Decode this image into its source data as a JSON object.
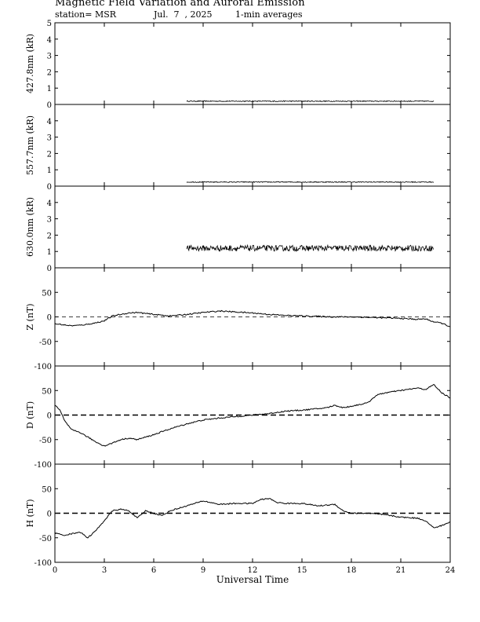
{
  "header": {
    "title": "Magnetic Field Variation and Auroral Emission",
    "station": "station= MSR",
    "date": "Jul.  7  , 2025",
    "averaging": "1-min averages"
  },
  "chart_data": [
    {
      "type": "line",
      "ylabel": "427.8nm (kR)",
      "ylim": [
        0,
        5
      ],
      "yticks": [
        "0",
        "1",
        "2",
        "3",
        "4",
        "5"
      ],
      "grid": false,
      "series": [
        {
          "x": [
            8.0,
            23.0
          ],
          "y": [
            0.2,
            0.2
          ],
          "noise": 0.03,
          "shape": "band"
        }
      ]
    },
    {
      "type": "line",
      "ylabel": "557.7nm (kR)",
      "ylim": [
        0,
        5
      ],
      "yticks": [
        "0",
        "1",
        "2",
        "3",
        "4",
        ""
      ],
      "grid": false,
      "series": [
        {
          "x": [
            8.0,
            23.0
          ],
          "y": [
            0.25,
            0.25
          ],
          "noise": 0.03,
          "shape": "band"
        }
      ]
    },
    {
      "type": "line",
      "ylabel": "630.0nm (kR)",
      "ylim": [
        0,
        5
      ],
      "yticks": [
        "0",
        "1",
        "2",
        "3",
        "4",
        ""
      ],
      "grid": false,
      "series": [
        {
          "x": [
            8.0,
            23.0
          ],
          "y": [
            1.2,
            1.2
          ],
          "noise": 0.18,
          "shape": "band"
        }
      ]
    },
    {
      "type": "line",
      "ylabel": "Z (nT)",
      "ylim": [
        -100,
        100
      ],
      "yticks": [
        "-100",
        "-50",
        "0",
        "50",
        ""
      ],
      "zero_line": "thin-dashed",
      "series": [
        {
          "x": [
            0,
            0.5,
            1,
            1.5,
            2,
            2.5,
            3,
            3.5,
            4,
            4.5,
            5,
            5.5,
            6,
            7,
            8,
            9,
            10,
            11,
            12,
            13,
            14,
            15,
            16,
            17,
            18,
            19,
            20,
            21,
            22,
            22.5,
            23,
            23.5,
            24
          ],
          "y": [
            -14,
            -16,
            -18,
            -17,
            -15,
            -12,
            -8,
            2,
            5,
            8,
            9,
            7,
            5,
            2,
            5,
            9,
            12,
            10,
            8,
            5,
            3,
            2,
            1,
            0,
            0,
            -1,
            -2,
            -3,
            -5,
            -4,
            -10,
            -13,
            -20
          ]
        }
      ]
    },
    {
      "type": "line",
      "ylabel": "D (nT)",
      "ylim": [
        -100,
        100
      ],
      "yticks": [
        "-100",
        "-50",
        "0",
        "50",
        ""
      ],
      "zero_line": "thick-dashed",
      "series": [
        {
          "x": [
            0,
            0.3,
            0.6,
            1,
            1.5,
            2,
            2.5,
            3,
            3.5,
            4,
            4.5,
            5,
            6,
            7,
            8,
            9,
            10,
            11,
            12,
            13,
            14,
            15,
            16,
            16.5,
            17,
            17.5,
            18,
            19,
            19.5,
            20,
            21,
            22,
            22.5,
            23,
            23.5,
            24
          ],
          "y": [
            20,
            10,
            -12,
            -30,
            -35,
            -45,
            -55,
            -63,
            -57,
            -50,
            -47,
            -50,
            -40,
            -28,
            -18,
            -10,
            -6,
            -3,
            0,
            3,
            8,
            10,
            13,
            15,
            20,
            15,
            18,
            25,
            40,
            45,
            50,
            55,
            52,
            62,
            45,
            35
          ]
        }
      ]
    },
    {
      "type": "line",
      "ylabel": "H (nT)",
      "ylim": [
        -100,
        100
      ],
      "yticks": [
        "-100",
        "-50",
        "0",
        "50",
        ""
      ],
      "xlabel": "Universal Time",
      "xlim": [
        0,
        24
      ],
      "xticks": [
        "0",
        "3",
        "6",
        "9",
        "12",
        "15",
        "18",
        "21",
        "24"
      ],
      "zero_line": "thick-dashed",
      "series": [
        {
          "x": [
            0,
            0.5,
            1,
            1.5,
            2,
            2.5,
            3,
            3.5,
            4,
            4.5,
            5,
            5.5,
            6,
            6.5,
            7,
            8,
            9,
            10,
            11,
            12,
            12.5,
            13,
            13.5,
            14,
            15,
            16,
            17,
            17.5,
            18,
            19,
            20,
            21,
            22,
            22.5,
            23,
            23.5,
            24
          ],
          "y": [
            -40,
            -45,
            -42,
            -38,
            -50,
            -35,
            -15,
            5,
            8,
            5,
            -10,
            5,
            0,
            -5,
            5,
            15,
            25,
            18,
            20,
            20,
            28,
            30,
            22,
            20,
            20,
            15,
            18,
            5,
            0,
            0,
            -3,
            -8,
            -10,
            -15,
            -30,
            -25,
            -18
          ]
        }
      ]
    }
  ]
}
